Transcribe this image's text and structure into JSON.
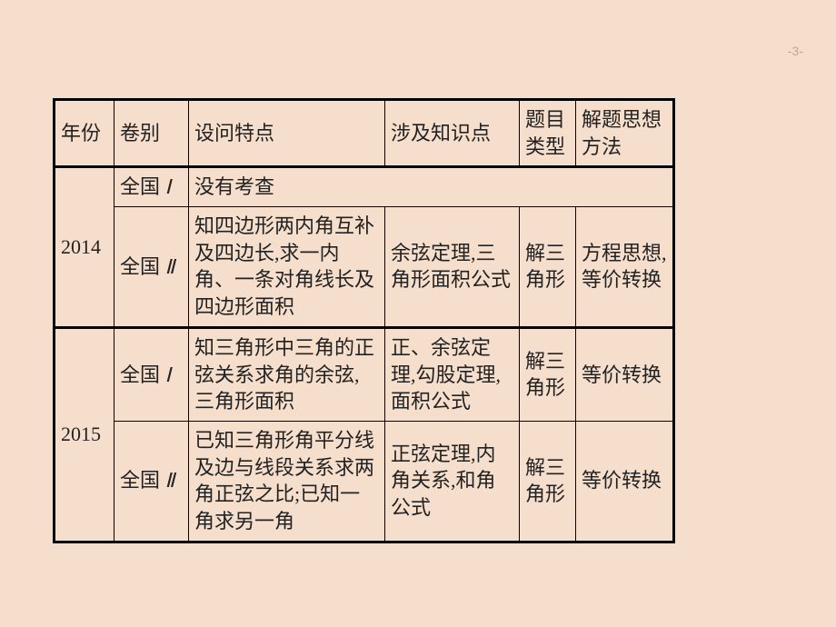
{
  "page_number": "-3-",
  "colors": {
    "background": "#f6decc",
    "border": "#000000",
    "text": "#222222",
    "page_no": "#bba895"
  },
  "headers": {
    "year": "年份",
    "juan": "卷别",
    "tedian": "设问特点",
    "zhishi": "涉及知识点",
    "leixing": "题目类型",
    "sixiang": "解题思想方法"
  },
  "rows": {
    "y2014": {
      "year": "2014",
      "r1": {
        "juan_pref": "全国",
        "juan_num": "Ⅰ",
        "tedian": "没有考查"
      },
      "r2": {
        "juan_pref": "全国",
        "juan_num": "Ⅱ",
        "tedian": "知四边形两内角互补及四边长,求一内角、一条对角线长及四边形面积",
        "zhishi": "余弦定理,三角形面积公式",
        "leixing": "解三角形",
        "sixiang": "方程思想,等价转换"
      }
    },
    "y2015": {
      "year": "2015",
      "r1": {
        "juan_pref": "全国",
        "juan_num": "Ⅰ",
        "tedian": "知三角形中三角的正弦关系求角的余弦,三角形面积",
        "zhishi": "正、余弦定理,勾股定理,面积公式",
        "leixing": "解三角形",
        "sixiang": "等价转换"
      },
      "r2": {
        "juan_pref": "全国",
        "juan_num": "Ⅱ",
        "tedian": "已知三角形角平分线及边与线段关系求两角正弦之比;已知一角求另一角",
        "zhishi": "正弦定理,内角关系,和角公式",
        "leixing": "解三角形",
        "sixiang": "等价转换"
      }
    }
  }
}
